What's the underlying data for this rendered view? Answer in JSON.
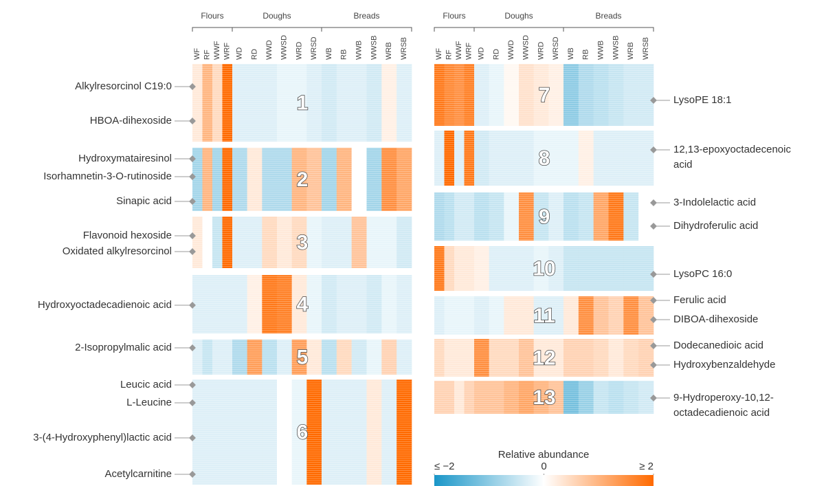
{
  "chart_data": {
    "type": "heatmap",
    "groups": [
      "Flours",
      "Doughs",
      "Breads"
    ],
    "columns": [
      "WF",
      "RF",
      "WWF",
      "WRF",
      "WD",
      "RD",
      "WWD",
      "WWSD",
      "WRD",
      "WRSD",
      "WB",
      "RB",
      "WWB",
      "WWSB",
      "WRB",
      "WRSB"
    ],
    "clusters": [
      {
        "label": "1",
        "values": [
          0.3,
          1,
          0.5,
          2,
          -0.3,
          -0.3,
          -0.3,
          -0.2,
          -0.2,
          -0.3,
          -0.4,
          -0.3,
          -0.3,
          -0.4,
          0.2,
          -0.3
        ],
        "annotations": [
          [
            "Alkylresorcinol C19:0"
          ],
          [
            "HBOA-dihexoside"
          ]
        ]
      },
      {
        "label": "2",
        "values": [
          -0.8,
          1,
          -0.8,
          2,
          -0.7,
          0.3,
          -0.7,
          -0.7,
          1,
          0.8,
          -0.8,
          1,
          0,
          -0.8,
          1.5,
          1.2
        ],
        "annotations": [
          [
            "Hydroxymatairesinol"
          ],
          [
            "Isorhamnetin-3-O-rutinoside"
          ],
          [
            "Sinapic acid"
          ]
        ]
      },
      {
        "label": "3",
        "values": [
          0.3,
          0,
          -0.5,
          2,
          -0.3,
          -0.3,
          0.5,
          0.3,
          0.5,
          -0.2,
          -0.3,
          -0.3,
          0.8,
          -0.2,
          -0.2,
          -0.4
        ],
        "annotations": [
          [
            "Flavonoid hexoside"
          ],
          [
            "Oxidated alkylresorcinol"
          ]
        ]
      },
      {
        "label": "4",
        "values": [
          -0.3,
          -0.3,
          -0.3,
          -0.3,
          -0.3,
          0.2,
          1.8,
          1.7,
          0.3,
          -0.2,
          -0.4,
          -0.3,
          -0.3,
          -0.4,
          -0.2,
          -0.3
        ],
        "annotations": [
          [
            "Hydroxyoctadecadienoic acid"
          ]
        ]
      },
      {
        "label": "5",
        "values": [
          -0.3,
          -0.5,
          -0.3,
          -0.3,
          -0.7,
          1.3,
          -0.6,
          -0.3,
          1.3,
          0.3,
          -0.6,
          0.5,
          -0.4,
          -0.2,
          0.6,
          -0.3
        ],
        "annotations": [
          [
            "2-Isopropylmalic acid"
          ]
        ]
      },
      {
        "label": "6",
        "values": [
          -0.3,
          -0.3,
          -0.3,
          -0.3,
          -0.3,
          -0.3,
          -0.3,
          0,
          -0.2,
          2,
          -0.3,
          -0.3,
          -0.3,
          0.3,
          -0.3,
          2
        ],
        "annotations": [
          [
            "Leucic acid"
          ],
          [
            "L-Leucine"
          ],
          [
            "3-(4-Hydroxyphenyl)lactic acid"
          ],
          [
            "Acetylcarnitine"
          ]
        ]
      },
      {
        "label": "7",
        "values": [
          1.8,
          1.6,
          1.5,
          1.7,
          -0.3,
          -0.2,
          0.1,
          0.4,
          0.3,
          0.2,
          -1,
          -0.7,
          -0.6,
          -0.5,
          -0.4,
          -0.4
        ],
        "annotations": [
          [
            "LysoPE 18:1"
          ]
        ]
      },
      {
        "label": "8",
        "values": [
          -0.3,
          2,
          -0.3,
          1.8,
          -0.4,
          -0.3,
          -0.3,
          -0.3,
          -0.2,
          -0.2,
          -0.2,
          0.2,
          -0.3,
          -0.3,
          -0.3,
          -0.3
        ],
        "annotations": [
          [
            "12,13-epoxyoctadecenoic",
            "acid"
          ]
        ]
      },
      {
        "label": "9",
        "values": [
          -0.7,
          -0.6,
          -0.4,
          -0.4,
          -0.6,
          -0.5,
          -0.2,
          1.5,
          -0.5,
          -0.3,
          -0.6,
          -0.5,
          1.2,
          1.8,
          -0.5,
          0
        ],
        "annotations": [
          [
            "3-Indolelactic acid"
          ],
          [
            "Dihydroferulic acid"
          ]
        ]
      },
      {
        "label": "10",
        "values": [
          1.8,
          0.5,
          0.3,
          0.3,
          0.2,
          -0.3,
          -0.3,
          -0.3,
          -0.2,
          -0.3,
          -0.5,
          -0.5,
          -0.5,
          -0.5,
          -0.5,
          -0.5
        ],
        "annotations": [
          [
            "LysoPC 16:0"
          ]
        ]
      },
      {
        "label": "11",
        "values": [
          -0.3,
          -0.2,
          -0.2,
          -0.2,
          -0.3,
          -0.2,
          0.3,
          0.3,
          -0.3,
          -0.3,
          0.3,
          1.5,
          0.8,
          0.6,
          1.5,
          0.8
        ],
        "annotations": [
          [
            "Ferulic acid"
          ],
          [
            "DIBOA-dihexoside"
          ]
        ]
      },
      {
        "label": "12",
        "values": [
          0.5,
          0.3,
          0.3,
          0.3,
          1.5,
          0.5,
          0.5,
          0.8,
          0.3,
          0.3,
          0.6,
          0.6,
          0.5,
          0.3,
          0.5,
          0.6
        ],
        "annotations": [
          [
            "Dodecanedioic acid"
          ],
          [
            "Hydroxybenzaldehyde"
          ]
        ]
      },
      {
        "label": "13",
        "values": [
          0.6,
          0.6,
          0.3,
          0.6,
          0.8,
          0.8,
          1,
          1.2,
          1,
          0.8,
          -1.2,
          -0.9,
          -0.5,
          -0.6,
          -0.5,
          -0.4
        ],
        "annotations": [
          [
            "9-Hydroperoxy-10,12-",
            "octadecadienoic acid"
          ]
        ]
      }
    ],
    "colorbar": {
      "title": "Relative abundance",
      "clim": [
        -2,
        2
      ],
      "ticks": [
        {
          "value": -2,
          "label": "≤ −2"
        },
        0,
        {
          "value": 2,
          "label": "≥ 2"
        }
      ],
      "colors": [
        "#1a96c8",
        "#ffffff",
        "#ff6a00"
      ]
    }
  }
}
